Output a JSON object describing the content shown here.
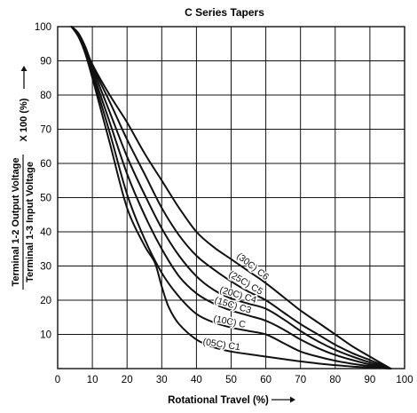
{
  "chart_data": {
    "type": "line",
    "title": "C Series Tapers",
    "xlabel": "Rotational Travel (%)",
    "ylabel": {
      "numerator": "Terminal 1-2 Output Voltage",
      "denominator": "Terminal 1-3 Input Voltage",
      "multiplier": "X 100 (%)"
    },
    "xlim": [
      0,
      100
    ],
    "ylim": [
      0,
      100
    ],
    "xticks": [
      0,
      10,
      20,
      30,
      40,
      50,
      60,
      70,
      80,
      90,
      100
    ],
    "yticks": [
      10,
      20,
      30,
      40,
      50,
      60,
      70,
      80,
      90,
      100
    ],
    "grid": true,
    "line_color": "#111111",
    "series": [
      {
        "name": "(30C) C6",
        "x": [
          4,
          6,
          8,
          10,
          15,
          20,
          25,
          30,
          35,
          40,
          45,
          50,
          55,
          60,
          65,
          70,
          75,
          80,
          85,
          90,
          96
        ],
        "y": [
          100,
          98,
          94,
          89,
          80,
          72,
          63,
          55,
          47,
          40,
          35.5,
          32,
          28.5,
          25,
          21,
          17,
          13.5,
          10,
          6.5,
          3.5,
          0
        ]
      },
      {
        "name": "(25C) C5",
        "x": [
          4,
          6,
          8,
          10,
          15,
          20,
          25,
          30,
          35,
          40,
          45,
          50,
          55,
          60,
          65,
          70,
          75,
          80,
          85,
          90,
          96
        ],
        "y": [
          100,
          98,
          94,
          88.5,
          78,
          67,
          57,
          47,
          39,
          33,
          29,
          25.5,
          22.5,
          20,
          16.5,
          13,
          10,
          7,
          4.5,
          2.5,
          0
        ]
      },
      {
        "name": "(20C) C4",
        "x": [
          4,
          6,
          8,
          10,
          15,
          20,
          25,
          30,
          35,
          40,
          45,
          50,
          55,
          60,
          65,
          70,
          75,
          80,
          85,
          90,
          96
        ],
        "y": [
          100,
          98,
          93.5,
          88,
          75,
          62,
          51,
          41,
          33,
          27,
          23,
          20.5,
          19,
          17.5,
          14.5,
          11,
          8,
          5.5,
          3.5,
          1.8,
          0
        ]
      },
      {
        "name": "(15C) C3",
        "x": [
          4,
          6,
          8,
          10,
          15,
          20,
          25,
          30,
          35,
          40,
          45,
          50,
          55,
          60,
          65,
          70,
          75,
          80,
          85,
          90,
          96
        ],
        "y": [
          100,
          97.5,
          93,
          87,
          72,
          57,
          45,
          35,
          27,
          22,
          19,
          17,
          15.5,
          14,
          11.5,
          8.5,
          6,
          4,
          2.5,
          1.2,
          0
        ]
      },
      {
        "name": "(10C) C",
        "x": [
          4,
          6,
          8,
          10,
          15,
          20,
          25,
          30,
          35,
          40,
          45,
          50,
          55,
          60,
          65,
          70,
          75,
          80,
          85,
          90,
          96
        ],
        "y": [
          100,
          97.5,
          92.5,
          86,
          69,
          51,
          38,
          28,
          21,
          16,
          13.5,
          12,
          11,
          10,
          7.5,
          5,
          3.5,
          2.3,
          1.4,
          0.7,
          0
        ]
      },
      {
        "name": "(05C) C1",
        "x": [
          4,
          6,
          8,
          10,
          15,
          20,
          25,
          28,
          30,
          32,
          35,
          40,
          45,
          50,
          55,
          60,
          65,
          70,
          75,
          80,
          85,
          90,
          96
        ],
        "y": [
          100,
          97,
          92,
          85,
          66,
          47,
          36,
          31,
          24,
          18,
          13,
          8.5,
          6.2,
          5,
          4.2,
          3.5,
          2.8,
          2.1,
          1.5,
          1.0,
          0.6,
          0.3,
          0
        ]
      }
    ]
  }
}
